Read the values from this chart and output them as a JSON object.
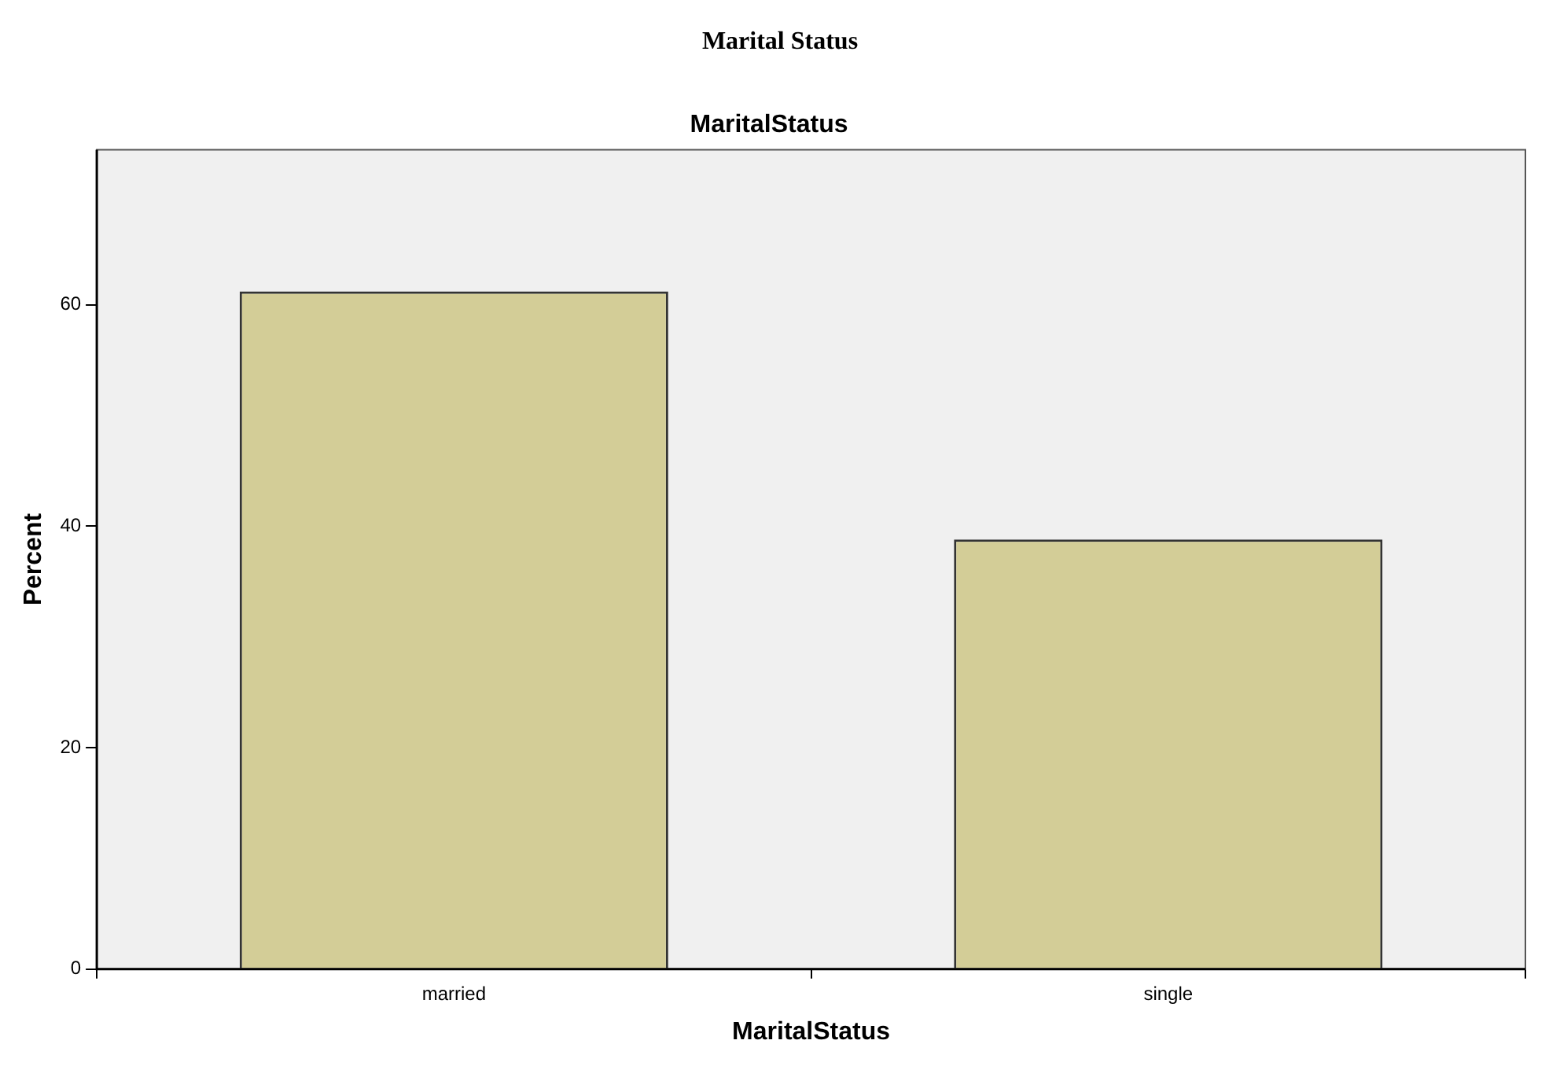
{
  "chart_data": {
    "type": "bar",
    "title": "Marital Status",
    "subtitle": "MaritalStatus",
    "xlabel": "MaritalStatus",
    "ylabel": "Percent",
    "categories": [
      "married",
      "single"
    ],
    "values": [
      61.2,
      38.8
    ],
    "color": "#d3cd97",
    "ylim": [
      0,
      74
    ],
    "yticks": [
      0,
      20,
      40,
      60
    ],
    "grid": false,
    "legend": false
  }
}
